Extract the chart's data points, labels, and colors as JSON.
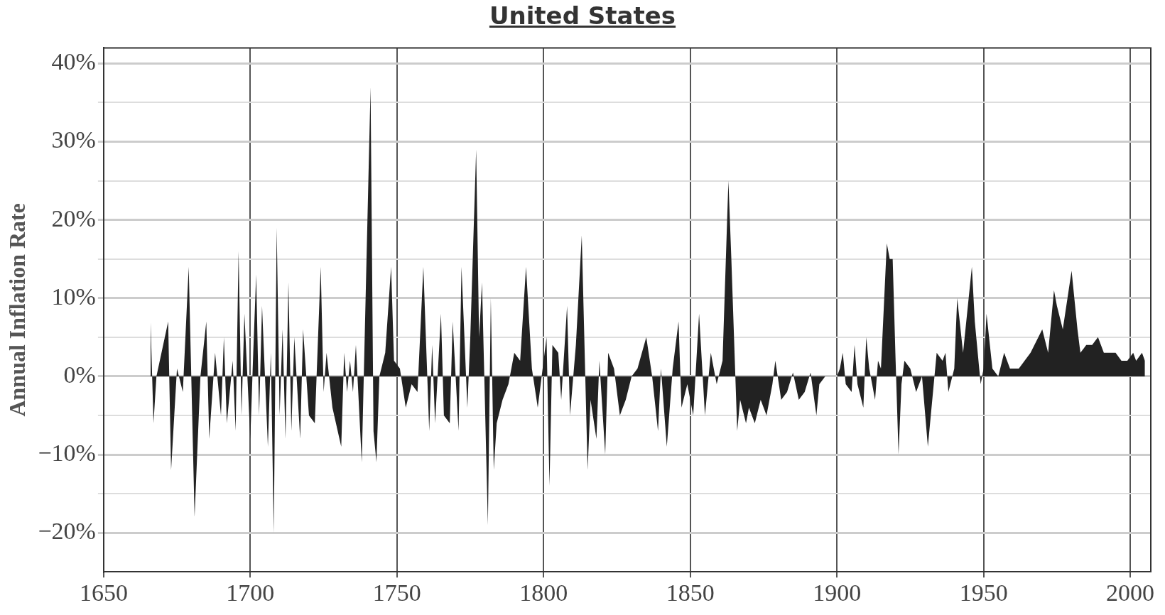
{
  "chart_data": {
    "type": "area",
    "title": "United States",
    "ylabel": "Annual Inflation Rate",
    "xlim": [
      1650,
      2007
    ],
    "xticks": [
      1650,
      1700,
      1750,
      1800,
      1850,
      1900,
      1950,
      2000
    ],
    "ylim": [
      -25,
      42
    ],
    "yticks": [
      {
        "value": -20,
        "label": "−20%"
      },
      {
        "value": -15,
        "label": null
      },
      {
        "value": -10,
        "label": "−10%"
      },
      {
        "value": -5,
        "label": null
      },
      {
        "value": 0,
        "label": "0%"
      },
      {
        "value": 5,
        "label": null
      },
      {
        "value": 10,
        "label": "10%"
      },
      {
        "value": 15,
        "label": null
      },
      {
        "value": 20,
        "label": "20%"
      },
      {
        "value": 25,
        "label": null
      },
      {
        "value": 30,
        "label": "30%"
      },
      {
        "value": 35,
        "label": null
      },
      {
        "value": 40,
        "label": "40%"
      }
    ],
    "grid": true,
    "legend": false,
    "series": [
      {
        "color": "#222222",
        "x": [
          1666,
          1667,
          1668,
          1672,
          1673,
          1675,
          1677,
          1679,
          1681,
          1683,
          1685,
          1686,
          1688,
          1690,
          1691,
          1692,
          1694,
          1695,
          1696,
          1697,
          1698,
          1700,
          1701,
          1702,
          1703,
          1704,
          1706,
          1707,
          1708,
          1709,
          1710,
          1711,
          1712,
          1713,
          1714,
          1715,
          1717,
          1718,
          1720,
          1722,
          1724,
          1725,
          1726,
          1728,
          1731,
          1732,
          1733,
          1734,
          1735,
          1736,
          1738,
          1739,
          1741,
          1742,
          1743,
          1744,
          1746,
          1748,
          1749,
          1751,
          1753,
          1755,
          1757,
          1759,
          1761,
          1762,
          1763,
          1765,
          1766,
          1768,
          1769,
          1771,
          1772,
          1774,
          1775,
          1777,
          1778,
          1779,
          1781,
          1782,
          1783,
          1784,
          1786,
          1788,
          1790,
          1792,
          1794,
          1796,
          1798,
          1799,
          1801,
          1802,
          1803,
          1805,
          1806,
          1808,
          1809,
          1811,
          1813,
          1815,
          1816,
          1818,
          1819,
          1821,
          1822,
          1824,
          1826,
          1828,
          1830,
          1832,
          1835,
          1837,
          1839,
          1840,
          1842,
          1844,
          1846,
          1847,
          1849,
          1851,
          1853,
          1855,
          1857,
          1859,
          1861,
          1863,
          1864,
          1866,
          1867,
          1869,
          1870,
          1872,
          1874,
          1876,
          1878,
          1879,
          1881,
          1883,
          1885,
          1887,
          1889,
          1891,
          1893,
          1894,
          1896,
          1900,
          1901,
          1902,
          1903,
          1905,
          1906,
          1907,
          1909,
          1910,
          1911,
          1913,
          1914,
          1915,
          1917,
          1918,
          1919,
          1920,
          1921,
          1922,
          1923,
          1925,
          1927,
          1929,
          1931,
          1932,
          1933,
          1934,
          1936,
          1937,
          1938,
          1940,
          1941,
          1943,
          1946,
          1947,
          1949,
          1950,
          1951,
          1953,
          1955,
          1957,
          1959,
          1962,
          1966,
          1970,
          1972,
          1974,
          1975,
          1977,
          1979,
          1980,
          1982,
          1983,
          1985,
          1987,
          1989,
          1991,
          1993,
          1995,
          1997,
          1999,
          2001,
          2002,
          2004,
          2005
        ],
        "values": [
          7,
          -6,
          0,
          7,
          -12,
          1,
          -2,
          14,
          -18,
          0,
          7,
          -8,
          3,
          -5,
          5,
          -6,
          2,
          -7,
          16,
          -5,
          8,
          -8,
          3,
          13,
          -5,
          9,
          -9,
          3,
          -20,
          19,
          -5,
          6,
          -8,
          12,
          -7,
          5,
          -8,
          6,
          -5,
          -6,
          14,
          -2,
          3,
          -4,
          -9,
          3,
          -2,
          2,
          -2,
          4,
          -11,
          5,
          37,
          -7,
          -11,
          0,
          3,
          14,
          2,
          1,
          -4,
          -1,
          -2,
          14,
          -7,
          4,
          -6,
          8,
          -5,
          -6,
          7,
          -7,
          14,
          -4,
          5,
          29,
          5,
          12,
          -19,
          10,
          -12,
          -6,
          -3,
          -1,
          3,
          2,
          14,
          1,
          -4,
          -1,
          5,
          -14,
          4,
          3,
          -3,
          9,
          -5,
          4,
          18,
          -12,
          -3,
          -8,
          2,
          -10,
          3,
          1,
          -5,
          -3,
          0,
          1,
          5,
          0,
          -7,
          1,
          -9,
          1,
          7,
          -4,
          -1,
          -5,
          8,
          -5,
          3,
          -1,
          2,
          25,
          15,
          -7,
          -3,
          -6,
          -4,
          -6,
          -3,
          -5,
          -1,
          2,
          -3,
          -2,
          0.5,
          -3,
          -2,
          0.5,
          -5,
          -1,
          0,
          0,
          1,
          3,
          -1,
          -2,
          4,
          -1,
          -4,
          5,
          1,
          -3,
          2,
          1,
          17,
          15,
          15,
          2,
          -10,
          -1,
          2,
          1,
          -2,
          0,
          -9,
          -5,
          -1,
          3,
          2,
          3,
          -2,
          1,
          10,
          3,
          14,
          7,
          -1,
          1,
          8,
          1,
          0,
          3,
          1,
          1,
          3,
          6,
          3,
          11,
          9,
          6,
          11,
          13.5,
          6,
          3,
          4,
          4,
          5,
          3,
          3,
          3,
          2,
          2,
          3,
          2,
          3,
          2
        ]
      }
    ]
  }
}
